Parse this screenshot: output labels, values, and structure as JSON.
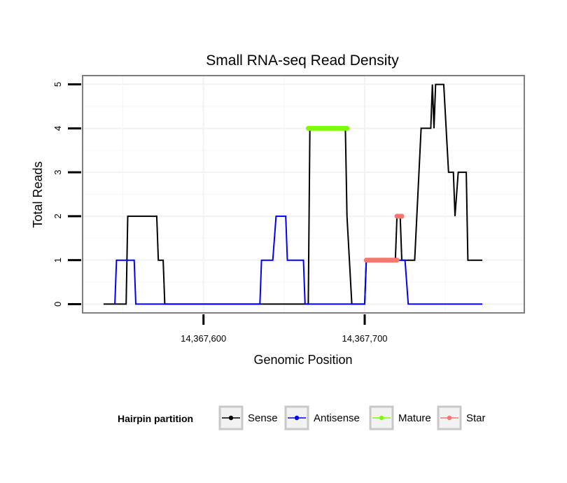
{
  "chart_data": {
    "type": "line",
    "title": "Small RNA-seq Read Density",
    "xlabel": "Genomic Position",
    "ylabel": "Total Reads",
    "xlim": [
      14367525,
      14367799
    ],
    "ylim": [
      -0.2,
      5.2
    ],
    "x_ticks": [
      14367600,
      14367700
    ],
    "x_tick_labels": [
      "14,367,600",
      "14,367,700"
    ],
    "y_ticks": [
      0,
      1,
      2,
      3,
      4,
      5
    ],
    "y_tick_labels": [
      "0",
      "1",
      "2",
      "3",
      "4",
      "5"
    ],
    "grid": true,
    "legend": {
      "title": "Hairpin partition",
      "position": "bottom",
      "entries": [
        "Sense",
        "Antisense",
        "Mature",
        "Star"
      ]
    },
    "series": [
      {
        "name": "Sense",
        "color": "#000000",
        "style": "line",
        "points": [
          [
            14367538,
            0
          ],
          [
            14367552,
            0
          ],
          [
            14367553,
            2
          ],
          [
            14367571,
            2
          ],
          [
            14367572,
            1
          ],
          [
            14367575,
            1
          ],
          [
            14367576,
            0
          ],
          [
            14367665,
            0
          ],
          [
            14367666,
            4
          ],
          [
            14367688,
            4
          ],
          [
            14367689,
            2
          ],
          [
            14367692,
            0
          ],
          [
            14367700,
            0
          ],
          [
            14367701,
            1
          ],
          [
            14367719,
            1
          ],
          [
            14367720,
            2
          ],
          [
            14367722,
            2
          ],
          [
            14367723,
            1
          ],
          [
            14367731,
            1
          ],
          [
            14367735,
            4
          ],
          [
            14367741,
            4
          ],
          [
            14367742,
            5
          ],
          [
            14367743,
            4
          ],
          [
            14367744,
            5
          ],
          [
            14367749,
            5
          ],
          [
            14367752,
            3
          ],
          [
            14367755,
            3
          ],
          [
            14367756,
            2
          ],
          [
            14367758,
            3
          ],
          [
            14367763,
            3
          ],
          [
            14367764,
            1
          ],
          [
            14367773,
            1
          ]
        ]
      },
      {
        "name": "Antisense",
        "color": "#0000ff",
        "style": "line",
        "points": [
          [
            14367545,
            0
          ],
          [
            14367546,
            1
          ],
          [
            14367557,
            1
          ],
          [
            14367558,
            0
          ],
          [
            14367635,
            0
          ],
          [
            14367636,
            1
          ],
          [
            14367643,
            1
          ],
          [
            14367645,
            2
          ],
          [
            14367651,
            2
          ],
          [
            14367652,
            1
          ],
          [
            14367662,
            1
          ],
          [
            14367663,
            0
          ],
          [
            14367700,
            0
          ],
          [
            14367701,
            1
          ],
          [
            14367725,
            1
          ],
          [
            14367727,
            0
          ],
          [
            14367773,
            0
          ]
        ]
      },
      {
        "name": "Mature",
        "color": "#7cfc00",
        "style": "points",
        "x_start": 14367665,
        "x_end": 14367689,
        "y": 4
      },
      {
        "name": "Star",
        "color": "#f8766d",
        "style": "points",
        "segments": [
          {
            "x_start": 14367701,
            "x_end": 14367720,
            "y": 1
          },
          {
            "x_start": 14367720,
            "x_end": 14367723,
            "y": 2
          }
        ]
      }
    ]
  }
}
